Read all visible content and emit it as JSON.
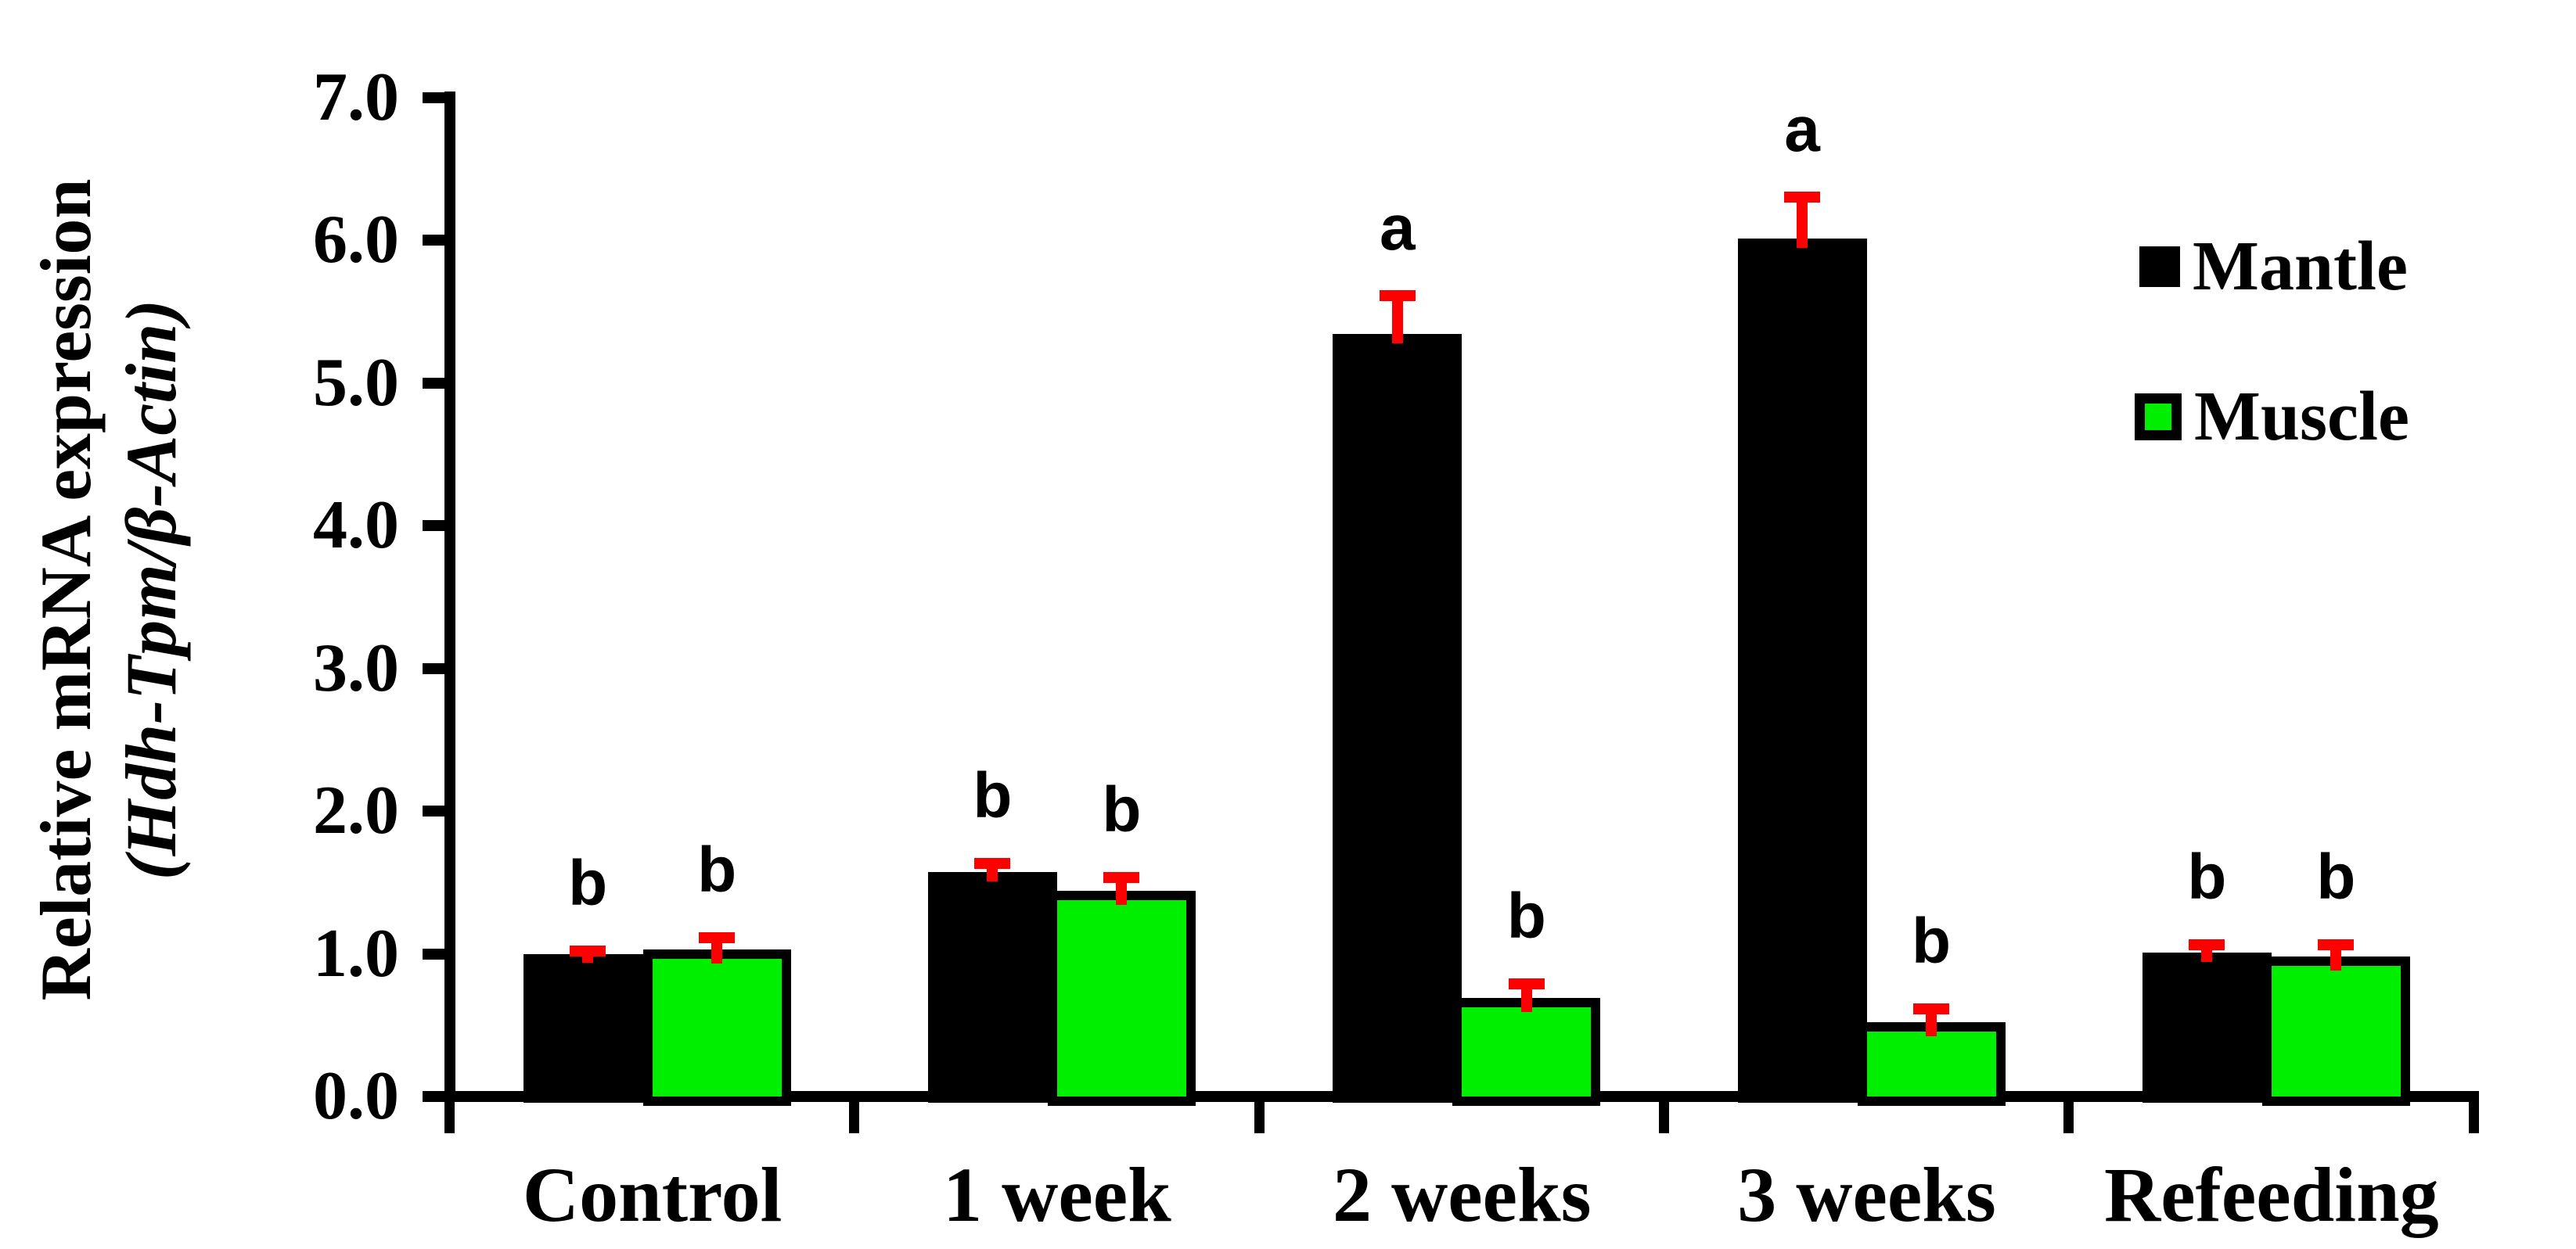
{
  "figure": {
    "background": "#ffffff"
  },
  "chart_data": {
    "type": "bar",
    "title": "",
    "ylabel_line1": "Relative mRNA expression",
    "ylabel_line2": "(Hdh-Tpm/β-Actin)",
    "categories": [
      "Control",
      "1 week",
      "2 weeks",
      "3 weeks",
      "Refeeding"
    ],
    "series": [
      {
        "name": "Mantle",
        "color": "#000000",
        "values": [
          1.0,
          1.57,
          5.34,
          6.01,
          1.01
        ],
        "errors": [
          0.06,
          0.1,
          0.31,
          0.33,
          0.09
        ],
        "sig_letters": [
          "b",
          "b",
          "a",
          "a",
          "b"
        ]
      },
      {
        "name": "Muscle",
        "color": "#00ee00",
        "values": [
          1.0,
          1.41,
          0.66,
          0.49,
          0.95
        ],
        "errors": [
          0.15,
          0.16,
          0.17,
          0.16,
          0.15
        ],
        "sig_letters": [
          "b",
          "b",
          "b",
          "b",
          "b"
        ]
      }
    ],
    "y_ticks": [
      "0.0",
      "1.0",
      "2.0",
      "3.0",
      "4.0",
      "5.0",
      "6.0",
      "7.0"
    ],
    "ylim": [
      0,
      7
    ],
    "xlabel": "",
    "error_bar_color": "#ff0000",
    "axis_color": "#000000",
    "grid": false,
    "legend_position": "upper-right"
  }
}
